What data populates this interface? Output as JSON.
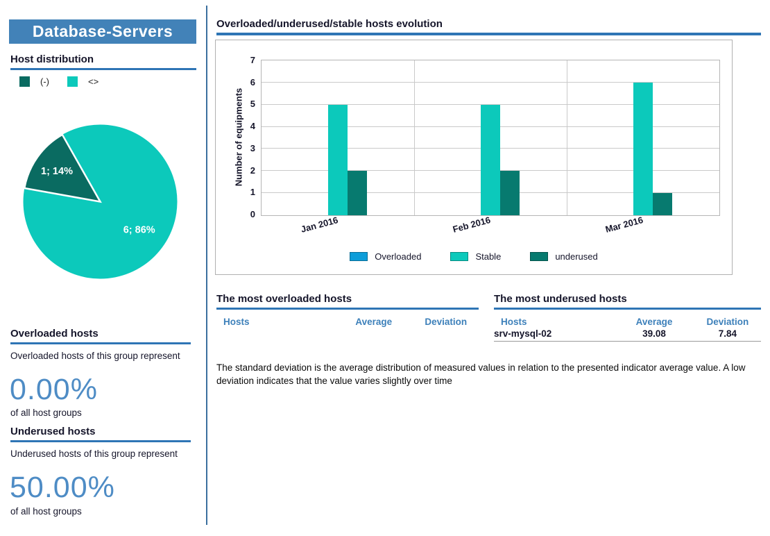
{
  "sidebar": {
    "title": "Database-Servers",
    "host_distribution": {
      "heading": "Host distribution",
      "legend": [
        {
          "label": "(-)",
          "color": "#0a6b61"
        },
        {
          "label": "<>",
          "color": "#0cc9bb"
        }
      ]
    },
    "overloaded": {
      "heading": "Overloaded hosts",
      "description": "Overloaded hosts of this group represent",
      "percent": "0.00%",
      "suffix": "of all host groups"
    },
    "underused": {
      "heading": "Underused hosts",
      "description": "Underused hosts of this group represent",
      "percent": "50.00%",
      "suffix": "of all host groups"
    }
  },
  "main": {
    "chart_heading": "Overloaded/underused/stable hosts evolution",
    "tables": {
      "overloaded": {
        "heading": "The most overloaded hosts",
        "columns": [
          "Hosts",
          "Average",
          "Deviation"
        ],
        "rows": []
      },
      "underused": {
        "heading": "The most underused hosts",
        "columns": [
          "Hosts",
          "Average",
          "Deviation"
        ],
        "rows": [
          [
            "srv-mysql-02",
            "39.08",
            "7.84"
          ]
        ]
      }
    },
    "note": "The standard deviation is the average distribution of measured values in relation to the presented indicator average value. A low  deviation indicates that the value varies slightly over time"
  },
  "colors": {
    "accent_blue": "#2e75b5",
    "title_bg": "#4282b8",
    "big_percent": "#4e8cc5",
    "table_header": "#3d80ba"
  },
  "chart_data": [
    {
      "type": "pie",
      "title": "Host distribution",
      "slices": [
        {
          "label": "1; 14%",
          "value": 1,
          "pct": 14,
          "color": "#0a6b61",
          "legend": "(-)"
        },
        {
          "label": "6; 86%",
          "value": 6,
          "pct": 86,
          "color": "#0cc9bb",
          "legend": "<>"
        }
      ]
    },
    {
      "type": "bar",
      "title": "Overloaded/underused/stable hosts evolution",
      "categories": [
        "Jan 2016",
        "Feb 2016",
        "Mar 2016"
      ],
      "series": [
        {
          "name": "Overloaded",
          "color": "#0d9dd9",
          "values": [
            0,
            0,
            0
          ]
        },
        {
          "name": "Stable",
          "color": "#0cc9bb",
          "values": [
            5,
            5,
            6
          ]
        },
        {
          "name": "underused",
          "color": "#077a6f",
          "values": [
            2,
            2,
            1
          ]
        }
      ],
      "xlabel": "",
      "ylabel": "Number of equipments",
      "ylim": [
        0,
        7
      ],
      "yticks": [
        0,
        1,
        2,
        3,
        4,
        5,
        6,
        7
      ],
      "grid": true,
      "legend_position": "bottom"
    }
  ]
}
